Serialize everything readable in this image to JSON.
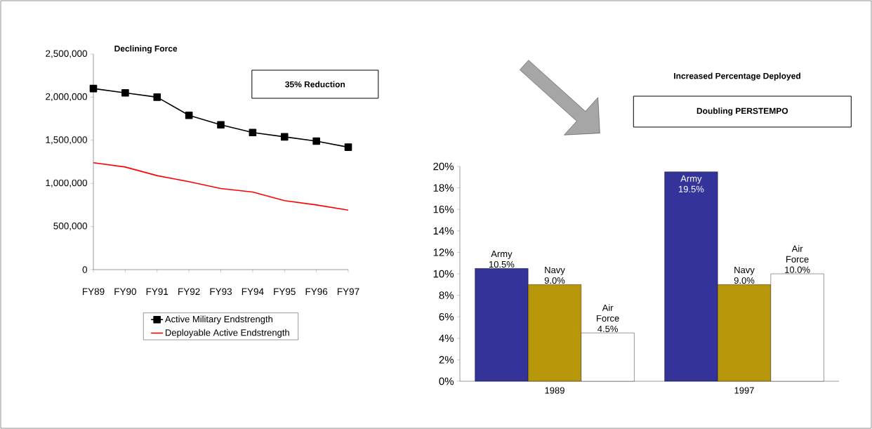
{
  "chart_data": [
    {
      "type": "line",
      "title": "Declining Force",
      "categories": [
        "FY89",
        "FY90",
        "FY91",
        "FY92",
        "FY93",
        "FY94",
        "FY95",
        "FY96",
        "FY97"
      ],
      "series": [
        {
          "name": "Active Military Endstrength",
          "color": "#000000",
          "marker": "square",
          "values": [
            2100000,
            2050000,
            2000000,
            1790000,
            1680000,
            1590000,
            1540000,
            1490000,
            1420000
          ]
        },
        {
          "name": "Deployable Active Endstrength",
          "color": "#ff0000",
          "marker": "none",
          "values": [
            1240000,
            1190000,
            1090000,
            1020000,
            940000,
            900000,
            800000,
            750000,
            690000
          ]
        }
      ],
      "ylim": [
        0,
        2500000
      ],
      "yticks": [
        0,
        {
          "value": 500000,
          "label": "500,000"
        },
        {
          "value": 1000000,
          "label": "1,000,000"
        },
        {
          "value": 1500000,
          "label": "1,500,000"
        },
        {
          "value": 2000000,
          "label": "2,000,000"
        },
        {
          "value": 2500000,
          "label": "2,500,000"
        }
      ],
      "legend": "bottom",
      "annotations": [
        "35% Reduction"
      ]
    },
    {
      "type": "bar",
      "title": "Increased Percentage Deployed",
      "categories": [
        "1989",
        "1997"
      ],
      "series": [
        {
          "name": "Army",
          "color": "#333399",
          "values": [
            10.5,
            19.5
          ],
          "value_labels": [
            "10.5%",
            "19.5%"
          ]
        },
        {
          "name": "Navy",
          "color": "#b8960a",
          "values": [
            9.0,
            9.0
          ],
          "value_labels": [
            "9.0%",
            "9.0%"
          ]
        },
        {
          "name": "Air Force",
          "color": "#ffffff",
          "values": [
            4.5,
            10.0
          ],
          "value_labels": [
            "4.5%",
            "10.0%"
          ]
        }
      ],
      "ylim": [
        0,
        20
      ],
      "yticks": [
        {
          "value": 0,
          "label": "0%"
        },
        {
          "value": 2,
          "label": "2%"
        },
        {
          "value": 4,
          "label": "4%"
        },
        {
          "value": 6,
          "label": "6%"
        },
        {
          "value": 8,
          "label": "8%"
        },
        {
          "value": 10,
          "label": "10%"
        },
        {
          "value": 12,
          "label": "12%"
        },
        {
          "value": 14,
          "label": "14%"
        },
        {
          "value": 16,
          "label": "16%"
        },
        {
          "value": 18,
          "label": "18%"
        },
        {
          "value": 20,
          "label": "20%"
        }
      ],
      "annotations": [
        "Doubling PERSTEMPO"
      ]
    }
  ]
}
